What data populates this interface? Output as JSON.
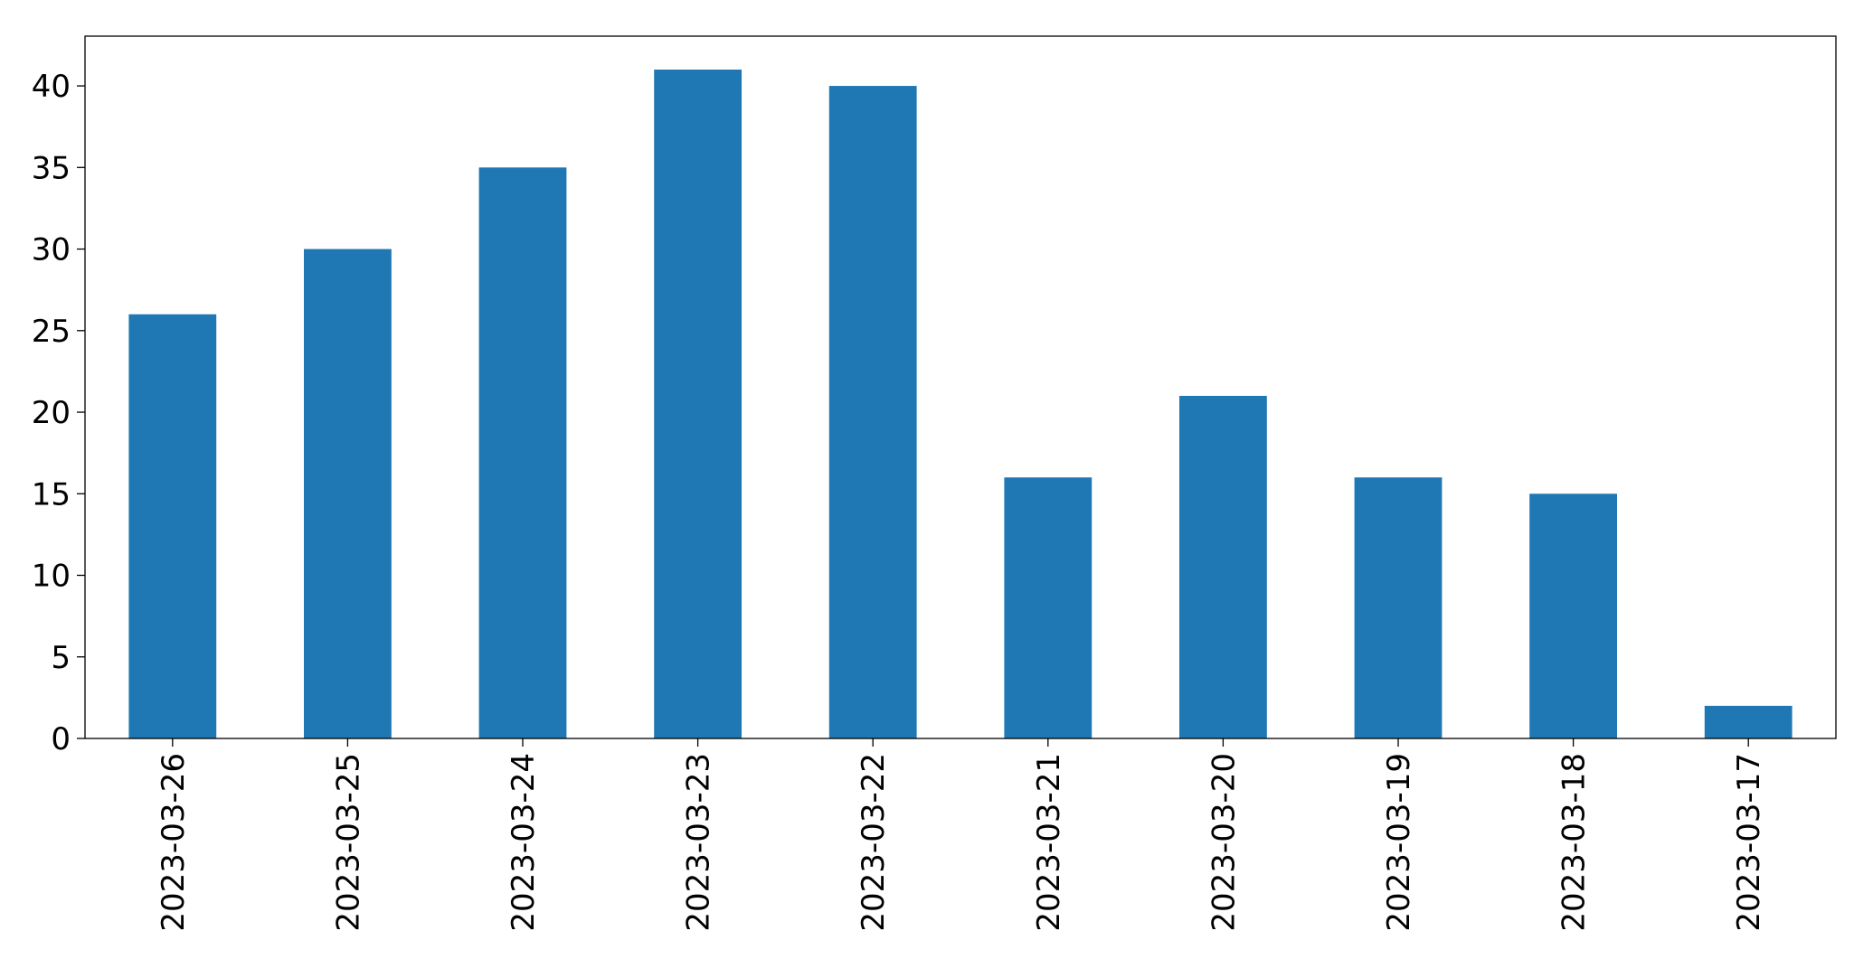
{
  "chart_data": {
    "type": "bar",
    "categories": [
      "2023-03-26",
      "2023-03-25",
      "2023-03-24",
      "2023-03-23",
      "2023-03-22",
      "2023-03-21",
      "2023-03-20",
      "2023-03-19",
      "2023-03-18",
      "2023-03-17"
    ],
    "values": [
      26,
      30,
      35,
      41,
      40,
      16,
      21,
      16,
      15,
      2
    ],
    "color": "#1f77b4",
    "ylim": [
      0,
      43.05
    ],
    "yticks": [
      0,
      5,
      10,
      15,
      20,
      25,
      30,
      35,
      40
    ],
    "grid": false
  }
}
